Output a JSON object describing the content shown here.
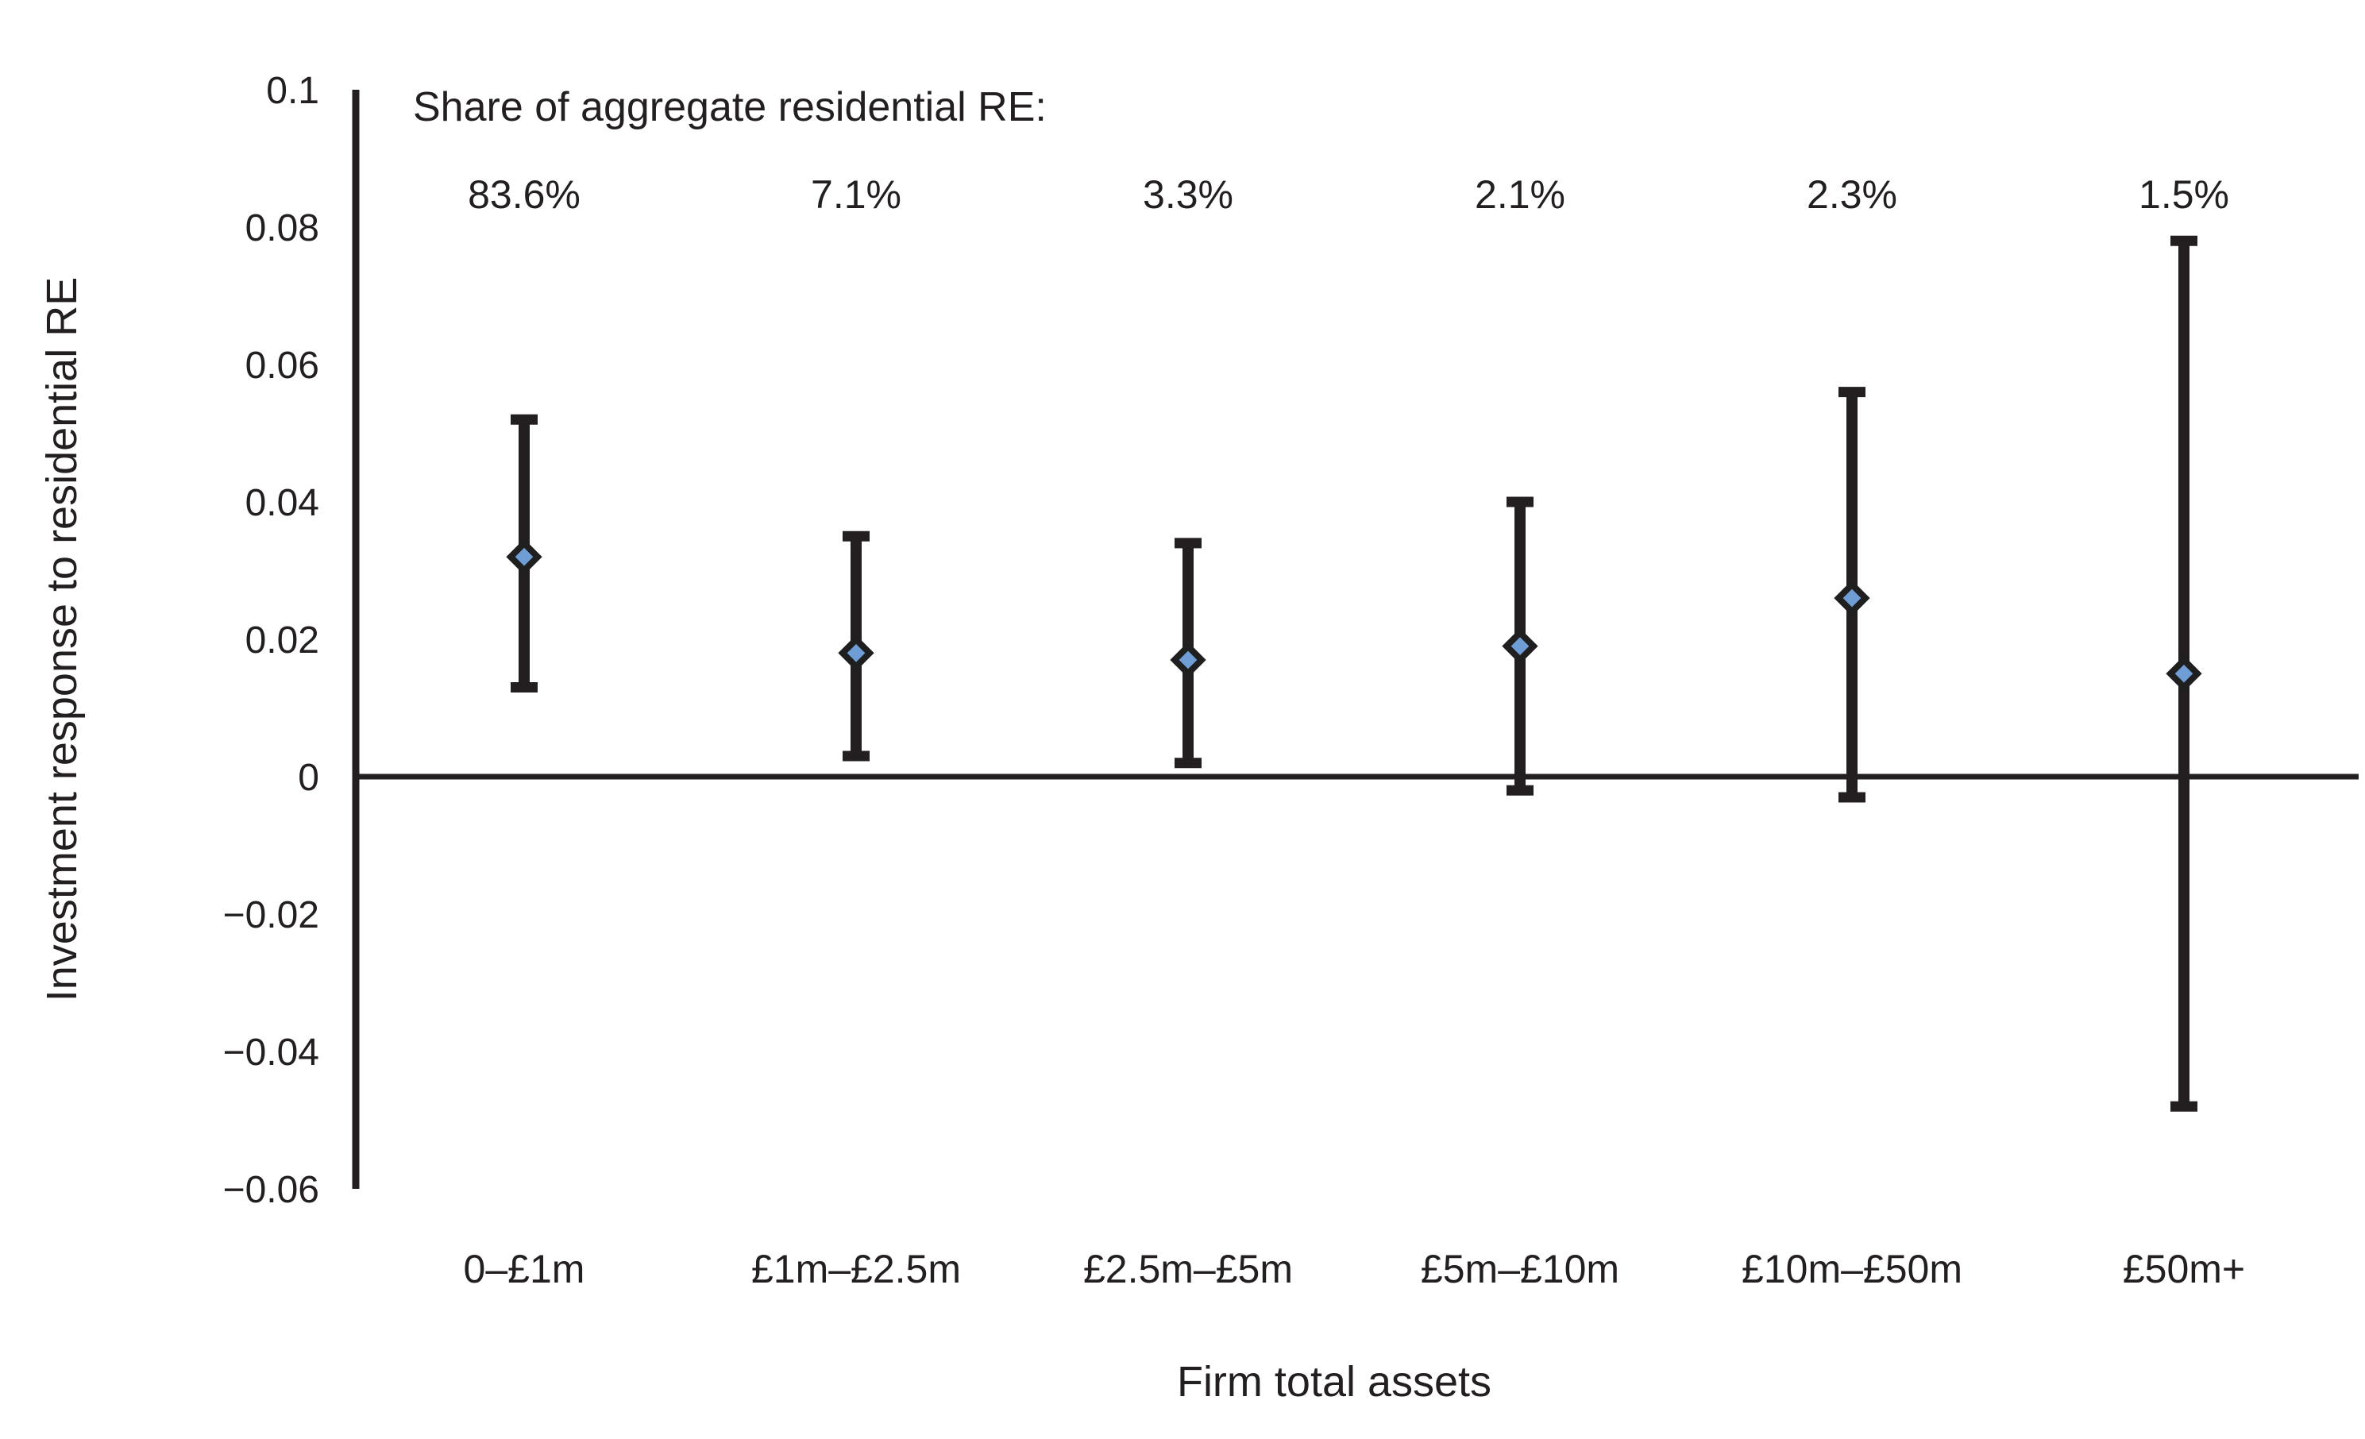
{
  "figure": {
    "background": "#ffffff"
  },
  "chart_data": {
    "type": "scatter",
    "subtype": "errorbar-coefficient-plot",
    "share_heading": "Share of aggregate residential RE:",
    "xlabel": "Firm total assets",
    "ylabel": "Investment response to residential RE",
    "categories": [
      "0–£1m",
      "£1m–£2.5m",
      "£2.5m–£5m",
      "£5m–£10m",
      "£10m–£50m",
      "£50m+"
    ],
    "shares": [
      "83.6%",
      "7.1%",
      "3.3%",
      "2.1%",
      "2.3%",
      "1.5%"
    ],
    "estimates": [
      0.032,
      0.018,
      0.017,
      0.019,
      0.026,
      0.015
    ],
    "ci_low": [
      0.013,
      0.003,
      0.002,
      -0.002,
      -0.003,
      -0.048
    ],
    "ci_high": [
      0.052,
      0.035,
      0.034,
      0.04,
      0.056,
      0.078
    ],
    "ylim": [
      -0.06,
      0.1
    ],
    "yticks": [
      {
        "label": "0.1",
        "value": 0.1
      },
      {
        "label": "0.08",
        "value": 0.08
      },
      {
        "label": "0.06",
        "value": 0.06
      },
      {
        "label": "0.04",
        "value": 0.04
      },
      {
        "label": "0.02",
        "value": 0.02
      },
      {
        "label": "0",
        "value": 0
      },
      {
        "label": "−0.02",
        "value": -0.02
      },
      {
        "label": "−0.04",
        "value": -0.04
      },
      {
        "label": "−0.06",
        "value": -0.06
      }
    ],
    "marker": "diamond",
    "grid": false,
    "legend": null,
    "colors": {
      "marker_fill": "#6f9ed6",
      "marker_stroke": "#1f1f1f",
      "line": "#231f20",
      "text": "#231f20",
      "background": "#ffffff"
    }
  }
}
